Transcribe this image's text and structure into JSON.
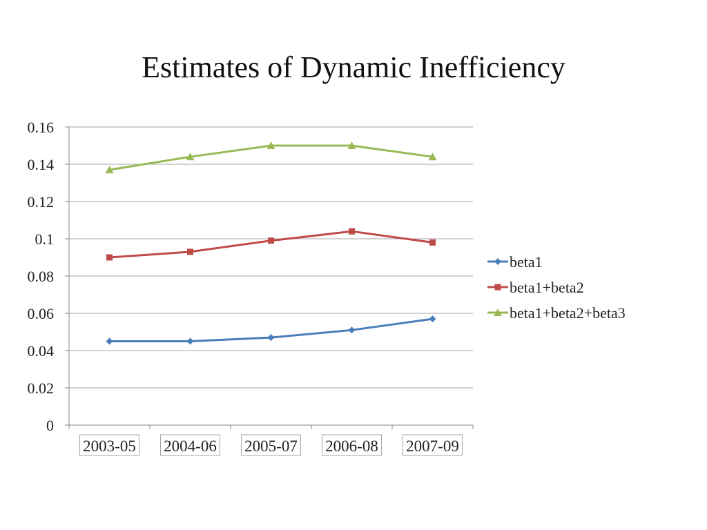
{
  "slide": {
    "title": "Estimates of Dynamic Inefficiency"
  },
  "chart_data": {
    "type": "line",
    "title": "",
    "xlabel": "",
    "ylabel": "",
    "categories": [
      "2003-05",
      "2004-06",
      "2005-07",
      "2006-08",
      "2007-09"
    ],
    "ylim": [
      0,
      0.16
    ],
    "yticks": [
      "0",
      "0.02",
      "0.04",
      "0.06",
      "0.08",
      "0.1",
      "0.12",
      "0.14",
      "0.16"
    ],
    "grid": true,
    "legend_position": "right",
    "series": [
      {
        "name": "beta1",
        "color": "#4a7ebb",
        "marker": "diamond",
        "values": [
          0.045,
          0.045,
          0.047,
          0.051,
          0.057
        ]
      },
      {
        "name": "beta1+beta2",
        "color": "#be4b48",
        "marker": "square",
        "values": [
          0.09,
          0.093,
          0.099,
          0.104,
          0.098
        ]
      },
      {
        "name": "beta1+beta2+beta3",
        "color": "#98b954",
        "marker": "triangle",
        "values": [
          0.137,
          0.144,
          0.15,
          0.15,
          0.144
        ]
      }
    ]
  }
}
